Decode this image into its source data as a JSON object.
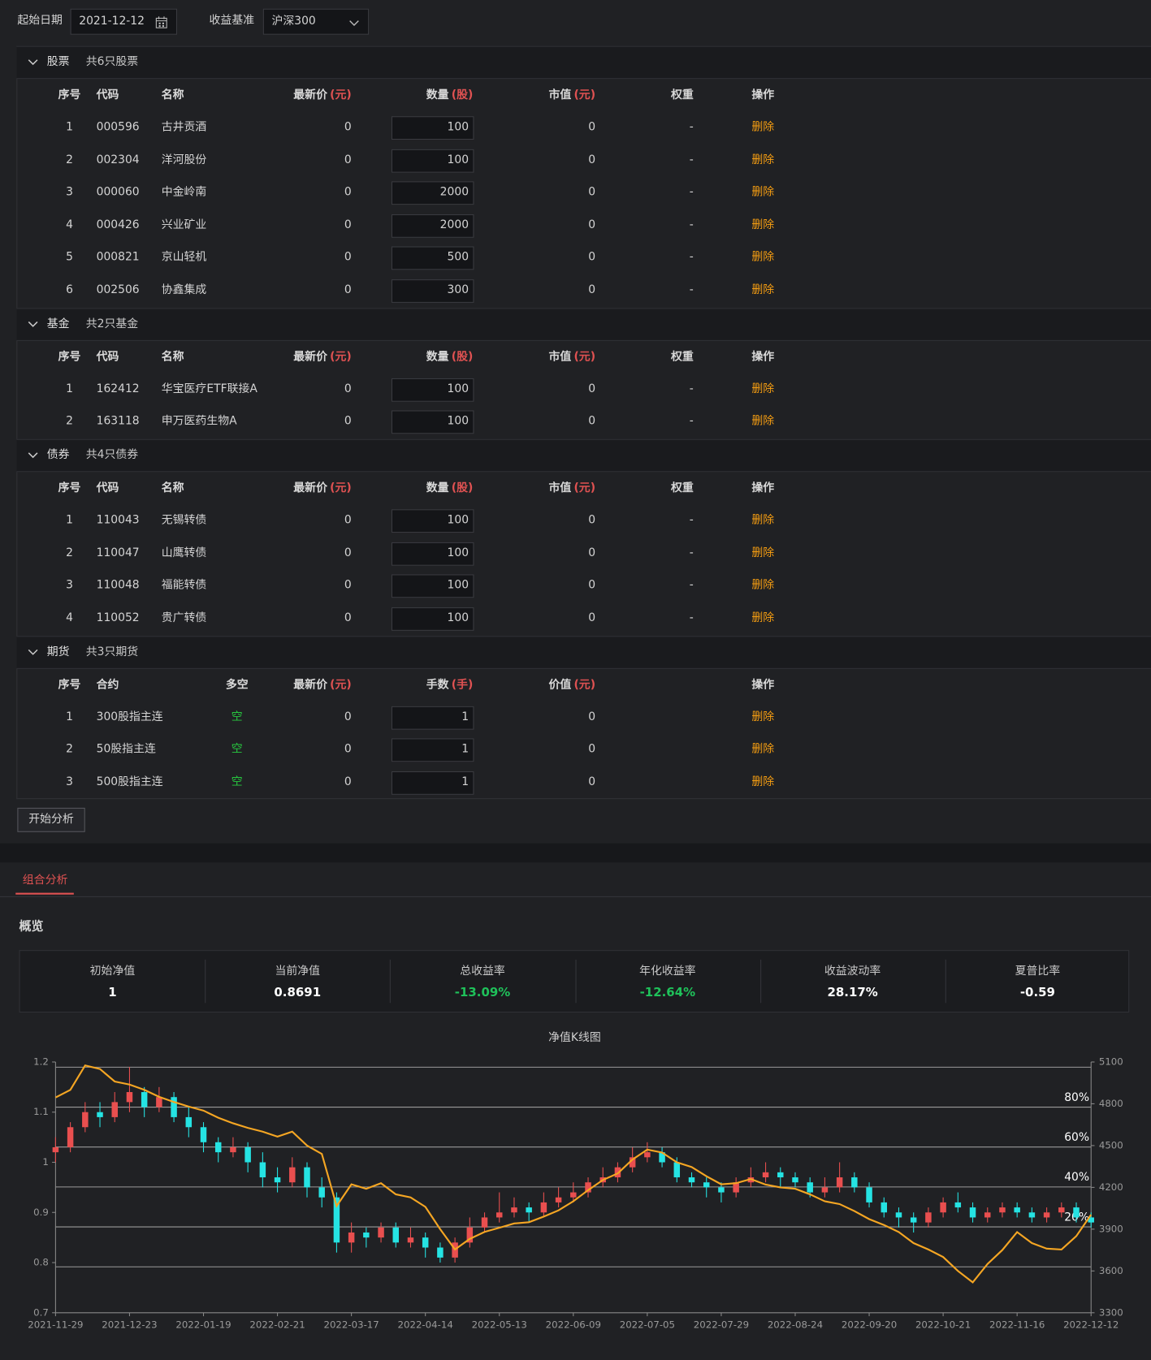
{
  "filters": {
    "start_date_label": "起始日期",
    "start_date": "2021-12-12",
    "benchmark_label": "收益基准",
    "benchmark": "沪深300"
  },
  "sections": [
    {
      "title": "股票",
      "count": "共6只股票",
      "headers": [
        "序号",
        "代码",
        "名称",
        {
          "text": "最新价",
          "unit": "(元)"
        },
        {
          "text": "数量",
          "unit": "(股)"
        },
        {
          "text": "市值",
          "unit": "(元)"
        },
        "权重",
        "操作"
      ],
      "rows": [
        [
          "1",
          "000596",
          "古井贡酒",
          "0",
          "100",
          "0",
          "-",
          "删除"
        ],
        [
          "2",
          "002304",
          "洋河股份",
          "0",
          "100",
          "0",
          "-",
          "删除"
        ],
        [
          "3",
          "000060",
          "中金岭南",
          "0",
          "2000",
          "0",
          "-",
          "删除"
        ],
        [
          "4",
          "000426",
          "兴业矿业",
          "0",
          "2000",
          "0",
          "-",
          "删除"
        ],
        [
          "5",
          "000821",
          "京山轻机",
          "0",
          "500",
          "0",
          "-",
          "删除"
        ],
        [
          "6",
          "002506",
          "协鑫集成",
          "0",
          "300",
          "0",
          "-",
          "删除"
        ]
      ]
    },
    {
      "title": "基金",
      "count": "共2只基金",
      "headers": [
        "序号",
        "代码",
        "名称",
        {
          "text": "最新价",
          "unit": "(元)"
        },
        {
          "text": "数量",
          "unit": "(股)"
        },
        {
          "text": "市值",
          "unit": "(元)"
        },
        "权重",
        "操作"
      ],
      "rows": [
        [
          "1",
          "162412",
          "华宝医疗ETF联接A",
          "0",
          "100",
          "0",
          "-",
          "删除"
        ],
        [
          "2",
          "163118",
          "申万医药生物A",
          "0",
          "100",
          "0",
          "-",
          "删除"
        ]
      ]
    },
    {
      "title": "债券",
      "count": "共4只债券",
      "headers": [
        "序号",
        "代码",
        "名称",
        {
          "text": "最新价",
          "unit": "(元)"
        },
        {
          "text": "数量",
          "unit": "(股)"
        },
        {
          "text": "市值",
          "unit": "(元)"
        },
        "权重",
        "操作"
      ],
      "rows": [
        [
          "1",
          "110043",
          "无锡转债",
          "0",
          "100",
          "0",
          "-",
          "删除"
        ],
        [
          "2",
          "110047",
          "山鹰转债",
          "0",
          "100",
          "0",
          "-",
          "删除"
        ],
        [
          "3",
          "110048",
          "福能转债",
          "0",
          "100",
          "0",
          "-",
          "删除"
        ],
        [
          "4",
          "110052",
          "贵广转债",
          "0",
          "100",
          "0",
          "-",
          "删除"
        ]
      ]
    },
    {
      "title": "期货",
      "count": "共3只期货",
      "headers": [
        "序号",
        "合约",
        "多空",
        {
          "text": "最新价",
          "unit": "(元)"
        },
        {
          "text": "手数",
          "unit": "(手)"
        },
        {
          "text": "价值",
          "unit": "(元)"
        },
        "操作"
      ],
      "rows": [
        [
          "1",
          "300股指主连",
          "空",
          "0",
          "1",
          "0",
          "删除"
        ],
        [
          "2",
          "50股指主连",
          "空",
          "0",
          "1",
          "0",
          "删除"
        ],
        [
          "3",
          "500股指主连",
          "空",
          "0",
          "1",
          "0",
          "删除"
        ]
      ]
    }
  ],
  "button": "开始分析",
  "tab": "组合分析",
  "overview": "概览",
  "stats": [
    {
      "label": "初始净值",
      "value": "1",
      "color": "#ffffff"
    },
    {
      "label": "当前净值",
      "value": "0.8691",
      "color": "#ffffff"
    },
    {
      "label": "总收益率",
      "value": "-13.09%",
      "color": "#1fc15a"
    },
    {
      "label": "年化收益率",
      "value": "-12.64%",
      "color": "#1fc15a"
    },
    {
      "label": "收益波动率",
      "value": "28.17%",
      "color": "#ffffff"
    },
    {
      "label": "夏普比率",
      "value": "-0.59",
      "color": "#ffffff"
    }
  ],
  "chart_data": {
    "type": "candlestick",
    "title": "净值K线图",
    "categories": [
      "2021-11-29",
      null,
      null,
      null,
      null,
      "2021-12-23",
      null,
      null,
      null,
      null,
      "2022-01-19",
      null,
      null,
      null,
      null,
      "2022-02-21",
      null,
      null,
      null,
      null,
      "2022-03-17",
      null,
      null,
      null,
      null,
      "2022-04-14",
      null,
      null,
      null,
      null,
      "2022-05-13",
      null,
      null,
      null,
      null,
      "2022-06-09",
      null,
      null,
      null,
      null,
      "2022-07-05",
      null,
      null,
      null,
      null,
      "2022-07-29",
      null,
      null,
      null,
      null,
      "2022-08-24",
      null,
      null,
      null,
      null,
      "2022-09-20",
      null,
      null,
      null,
      null,
      "2022-10-21",
      null,
      null,
      null,
      null,
      "2022-11-16",
      null,
      null,
      null,
      null,
      "2022-12-12"
    ],
    "candles": {
      "up_color": "#e94f4f",
      "down_color": "#25e3e3",
      "open": [
        1.02,
        1.03,
        1.07,
        1.1,
        1.09,
        1.12,
        1.14,
        1.11,
        1.13,
        1.09,
        1.07,
        1.04,
        1.02,
        1.03,
        1.0,
        0.97,
        0.96,
        0.99,
        0.95,
        0.93,
        0.84,
        0.86,
        0.85,
        0.87,
        0.84,
        0.85,
        0.83,
        0.81,
        0.84,
        0.87,
        0.89,
        0.9,
        0.91,
        0.9,
        0.92,
        0.93,
        0.94,
        0.96,
        0.97,
        0.99,
        1.01,
        1.02,
        1.0,
        0.97,
        0.96,
        0.95,
        0.94,
        0.96,
        0.97,
        0.98,
        0.97,
        0.96,
        0.94,
        0.95,
        0.97,
        0.95,
        0.92,
        0.9,
        0.89,
        0.88,
        0.9,
        0.92,
        0.91,
        0.89,
        0.9,
        0.91,
        0.9,
        0.89,
        0.9,
        0.91,
        0.89
      ],
      "close": [
        1.03,
        1.07,
        1.1,
        1.09,
        1.12,
        1.14,
        1.11,
        1.13,
        1.09,
        1.07,
        1.04,
        1.02,
        1.03,
        1.0,
        0.97,
        0.96,
        0.99,
        0.95,
        0.93,
        0.84,
        0.86,
        0.85,
        0.87,
        0.84,
        0.85,
        0.83,
        0.81,
        0.84,
        0.87,
        0.89,
        0.9,
        0.91,
        0.9,
        0.92,
        0.93,
        0.94,
        0.96,
        0.97,
        0.99,
        1.01,
        1.02,
        1.0,
        0.97,
        0.96,
        0.95,
        0.94,
        0.96,
        0.97,
        0.98,
        0.97,
        0.96,
        0.94,
        0.95,
        0.97,
        0.95,
        0.92,
        0.9,
        0.89,
        0.88,
        0.9,
        0.92,
        0.91,
        0.89,
        0.9,
        0.91,
        0.9,
        0.89,
        0.9,
        0.91,
        0.89,
        0.88
      ],
      "high": [
        1.05,
        1.08,
        1.12,
        1.12,
        1.14,
        1.19,
        1.15,
        1.15,
        1.14,
        1.11,
        1.08,
        1.05,
        1.05,
        1.04,
        1.02,
        0.99,
        1.01,
        1.0,
        0.97,
        0.94,
        0.88,
        0.87,
        0.88,
        0.88,
        0.87,
        0.86,
        0.84,
        0.85,
        0.89,
        0.9,
        0.94,
        0.93,
        0.92,
        0.94,
        0.95,
        0.96,
        0.97,
        0.99,
        1.0,
        1.03,
        1.04,
        1.03,
        1.01,
        0.98,
        0.97,
        0.96,
        0.97,
        0.99,
        1.0,
        0.99,
        0.98,
        0.97,
        0.97,
        1.0,
        0.98,
        0.96,
        0.93,
        0.91,
        0.9,
        0.91,
        0.93,
        0.94,
        0.92,
        0.91,
        0.92,
        0.92,
        0.91,
        0.91,
        0.92,
        0.92,
        0.9
      ],
      "low": [
        1.0,
        1.02,
        1.06,
        1.07,
        1.08,
        1.1,
        1.09,
        1.1,
        1.08,
        1.05,
        1.02,
        1.0,
        1.01,
        0.98,
        0.95,
        0.94,
        0.95,
        0.93,
        0.91,
        0.82,
        0.82,
        0.83,
        0.84,
        0.83,
        0.83,
        0.81,
        0.8,
        0.8,
        0.83,
        0.86,
        0.88,
        0.89,
        0.88,
        0.89,
        0.91,
        0.92,
        0.93,
        0.95,
        0.96,
        0.98,
        1.0,
        0.99,
        0.96,
        0.95,
        0.93,
        0.92,
        0.93,
        0.95,
        0.96,
        0.95,
        0.95,
        0.93,
        0.93,
        0.94,
        0.94,
        0.91,
        0.89,
        0.87,
        0.86,
        0.87,
        0.89,
        0.9,
        0.88,
        0.88,
        0.89,
        0.89,
        0.88,
        0.88,
        0.89,
        0.88,
        0.87
      ]
    },
    "line": {
      "color": "#f5a623",
      "axis": "y2",
      "values": [
        4845,
        4900,
        5075,
        5050,
        4960,
        4938,
        4900,
        4850,
        4813,
        4780,
        4751,
        4700,
        4660,
        4627,
        4600,
        4564,
        4600,
        4500,
        4440,
        4066,
        4222,
        4190,
        4230,
        4150,
        4128,
        4060,
        3900,
        3754,
        3830,
        3880,
        3910,
        3941,
        3950,
        3990,
        4035,
        4100,
        4180,
        4253,
        4300,
        4400,
        4471,
        4450,
        4380,
        4346,
        4280,
        4222,
        4230,
        4260,
        4220,
        4200,
        4190,
        4150,
        4100,
        4080,
        4030,
        3972,
        3930,
        3879,
        3800,
        3754,
        3700,
        3600,
        3518,
        3650,
        3750,
        3879,
        3800,
        3760,
        3754,
        3850,
        4004
      ]
    },
    "ylim": [
      0.7,
      1.2
    ],
    "yticks": [
      0.7,
      0.8,
      0.9,
      1,
      1.1,
      1.2
    ],
    "y2lim": [
      3300,
      5100
    ],
    "y2ticks": [
      3300,
      3600,
      3900,
      4200,
      4500,
      4800,
      5100
    ],
    "y3lim": [
      -23,
      102.6
    ],
    "y3ticks": [
      {
        "value": 0,
        "label": null
      },
      {
        "value": 20,
        "label": "20%"
      },
      {
        "value": 40,
        "label": "40%"
      },
      {
        "value": 60,
        "label": "60%"
      },
      {
        "value": 80,
        "label": "80%"
      },
      {
        "value": 100,
        "label": null
      }
    ]
  }
}
